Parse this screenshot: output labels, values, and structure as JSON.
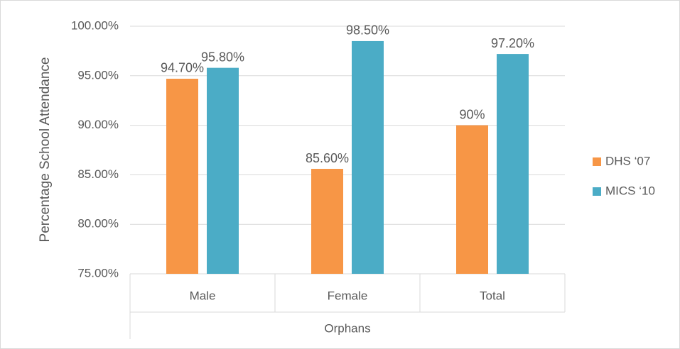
{
  "chart_data": {
    "type": "bar",
    "ylabel": "Percentage School Attendance",
    "xlabel": "Orphans",
    "categories": [
      "Male",
      "Female",
      "Total"
    ],
    "series": [
      {
        "name": "DHS ‘07",
        "color": "#f79646",
        "values": [
          94.7,
          85.6,
          90
        ],
        "value_labels": [
          "94.70%",
          "85.60%",
          "90%"
        ]
      },
      {
        "name": "MICS ‘10",
        "color": "#4bacc6",
        "values": [
          95.8,
          98.5,
          97.2
        ],
        "value_labels": [
          "95.80%",
          "98.50%",
          "97.20%"
        ]
      }
    ],
    "ylim": [
      75,
      100
    ],
    "yticks": [
      {
        "value": 75,
        "label": "75.00%"
      },
      {
        "value": 80,
        "label": "80.00%"
      },
      {
        "value": 85,
        "label": "85.00%"
      },
      {
        "value": 90,
        "label": "90.00%"
      },
      {
        "value": 95,
        "label": "95.00%"
      },
      {
        "value": 100,
        "label": "100.00%"
      }
    ],
    "grid": true,
    "legend": "right"
  }
}
